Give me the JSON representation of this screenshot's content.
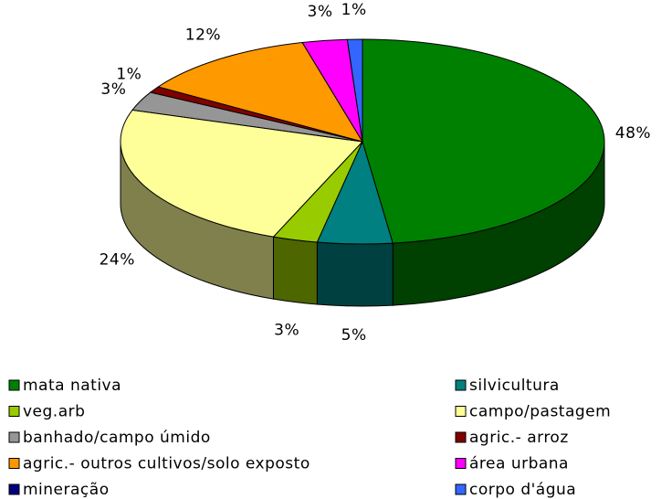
{
  "chart_data": {
    "type": "pie3d",
    "categories": [
      "mata nativa",
      "silvicultura",
      "veg.arb",
      "campo/pastagem",
      "banhado/campo úmido",
      "agric.- arroz",
      "agric.- outros cultivos/solo exposto",
      "área urbana",
      "mineração",
      "corpo d'água"
    ],
    "values": [
      48,
      5,
      3,
      24,
      3,
      1,
      12,
      3,
      0,
      1
    ],
    "value_labels": [
      "48%",
      "5%",
      "3%",
      "24%",
      "3%",
      "1%",
      "12%",
      "3%",
      null,
      "1%"
    ],
    "colors": [
      "#008000",
      "#008080",
      "#99cc00",
      "#ffff99",
      "#969696",
      "#800000",
      "#ff9900",
      "#ff00ff",
      "#000080",
      "#3366ff"
    ],
    "legend": "bottom"
  }
}
